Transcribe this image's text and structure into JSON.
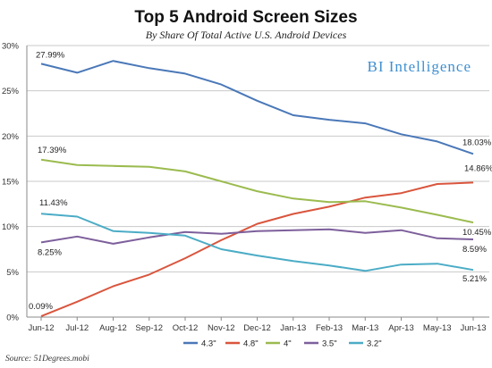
{
  "chart_data": {
    "type": "line",
    "title": "Top 5 Android Screen Sizes",
    "subtitle": "By Share Of Total Active U.S. Android Devices",
    "categories": [
      "Jun-12",
      "Jul-12",
      "Aug-12",
      "Sep-12",
      "Oct-12",
      "Nov-12",
      "Dec-12",
      "Jan-13",
      "Feb-13",
      "Mar-13",
      "Apr-13",
      "May-13",
      "Jun-13"
    ],
    "y_ticks": [
      "0%",
      "5%",
      "10%",
      "15%",
      "20%",
      "25%",
      "30%"
    ],
    "ylim": [
      0,
      30
    ],
    "grid": true,
    "legend_position": "bottom",
    "series": [
      {
        "name": "4.3\"",
        "color": "#4a78b8",
        "values": [
          27.99,
          27.0,
          28.3,
          27.5,
          26.9,
          25.7,
          23.9,
          22.3,
          21.8,
          21.4,
          20.2,
          19.4,
          18.03
        ]
      },
      {
        "name": "4.8\"",
        "color": "#d9553d",
        "values": [
          0.09,
          1.7,
          3.4,
          4.7,
          6.5,
          8.5,
          10.3,
          11.4,
          12.2,
          13.2,
          13.7,
          14.7,
          14.86
        ]
      },
      {
        "name": "4\"",
        "color": "#9bbb4f",
        "values": [
          17.39,
          16.8,
          16.7,
          16.6,
          16.1,
          15.0,
          13.9,
          13.1,
          12.7,
          12.8,
          12.1,
          11.3,
          10.45
        ]
      },
      {
        "name": "3.5\"",
        "color": "#7d5f9b",
        "values": [
          8.25,
          8.9,
          8.1,
          8.8,
          9.4,
          9.2,
          9.5,
          9.6,
          9.7,
          9.3,
          9.6,
          8.7,
          8.59
        ]
      },
      {
        "name": "3.2\"",
        "color": "#4bacc6",
        "values": [
          11.43,
          11.1,
          9.5,
          9.3,
          9.0,
          7.5,
          6.8,
          6.2,
          5.7,
          5.1,
          5.8,
          5.9,
          5.21
        ]
      }
    ],
    "data_labels": [
      {
        "series": 0,
        "index": 0,
        "text": "27.99%"
      },
      {
        "series": 0,
        "index": 12,
        "text": "18.03%"
      },
      {
        "series": 1,
        "index": 0,
        "text": "0.09%"
      },
      {
        "series": 1,
        "index": 12,
        "text": "14.86%"
      },
      {
        "series": 2,
        "index": 0,
        "text": "17.39%"
      },
      {
        "series": 2,
        "index": 12,
        "text": "10.45%"
      },
      {
        "series": 3,
        "index": 0,
        "text": "8.25%"
      },
      {
        "series": 3,
        "index": 12,
        "text": "8.59%"
      },
      {
        "series": 4,
        "index": 0,
        "text": "11.43%"
      },
      {
        "series": 4,
        "index": 12,
        "text": "5.21%"
      }
    ]
  },
  "branding": {
    "name": "BI Intelligence"
  },
  "source": "Source: 51Degrees.mobi"
}
